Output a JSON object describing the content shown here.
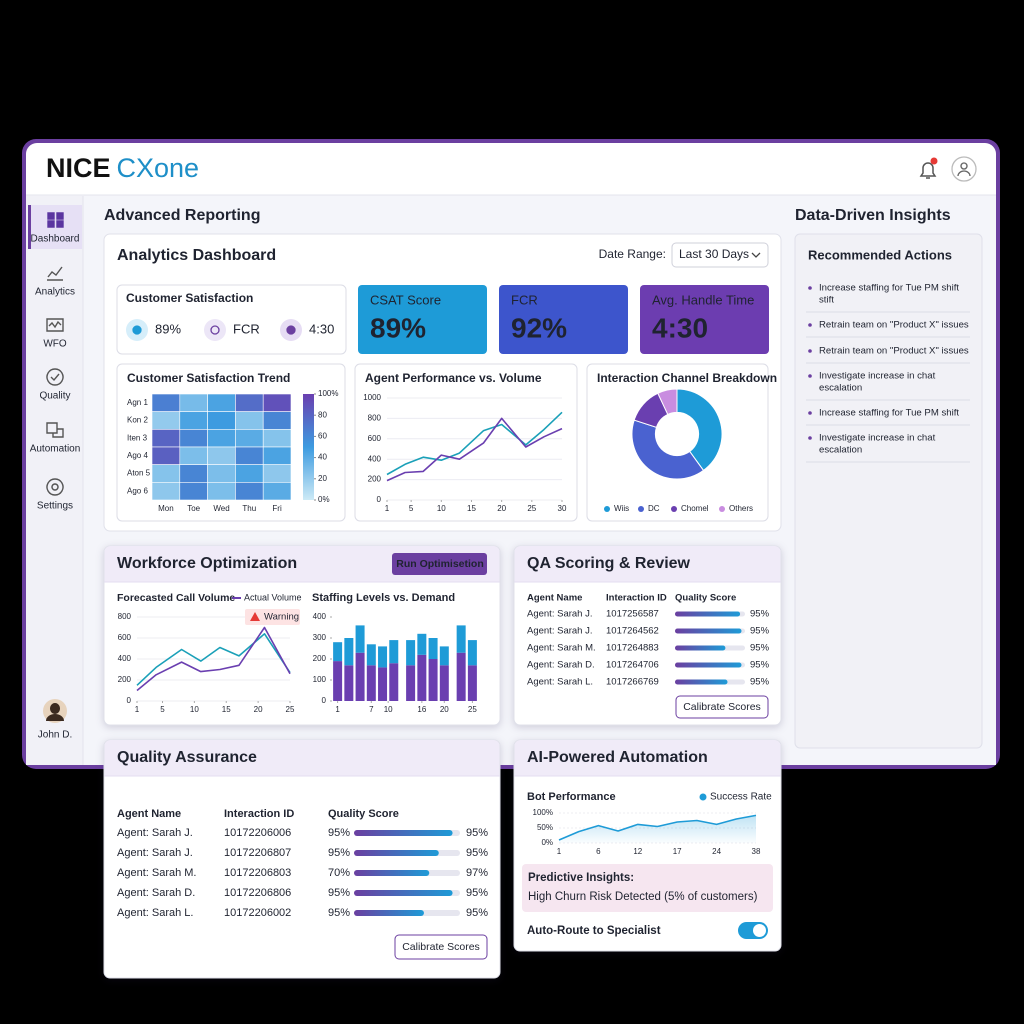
{
  "header": {
    "logo_bold": "NICE",
    "logo_light": "CXone"
  },
  "sidebar": {
    "items": [
      "Dashboard",
      "Analytics",
      "WFO",
      "Quality",
      "Automation",
      "Settings"
    ],
    "active": 0,
    "user": "John D."
  },
  "heading": "Advanced Reporting",
  "analytics": {
    "title": "Analytics Dashboard",
    "date_label": "Date Range:",
    "date_value": "Last 30 Days",
    "satisfaction": {
      "title": "Customer Satisfaction",
      "items": [
        "89%",
        "FCR",
        "4:30"
      ]
    },
    "kpis": [
      {
        "label": "CSAT Score",
        "value": "89%",
        "color": "#1e9bd7"
      },
      {
        "label": "FCR",
        "value": "92%",
        "color": "#3d55cc"
      },
      {
        "label": "Avg. Handle Time",
        "value": "4:30",
        "color": "#6c3db0"
      }
    ],
    "heatmap": {
      "type": "heatmap",
      "title": "Customer Satisfaction Trend",
      "rows": [
        "Agn 1",
        "Kon 2",
        "Iten 3",
        "Ago 4",
        "Aton 5",
        "Ago 6"
      ],
      "columns": [
        "Mon",
        "Toe",
        "Wed",
        "Thu",
        "Fri"
      ],
      "values": [
        [
          65,
          30,
          45,
          75,
          90
        ],
        [
          20,
          45,
          50,
          25,
          62
        ],
        [
          80,
          62,
          45,
          40,
          25
        ],
        [
          82,
          28,
          22,
          62,
          45
        ],
        [
          25,
          62,
          28,
          45,
          22
        ],
        [
          22,
          62,
          28,
          62,
          40
        ]
      ],
      "clim": [
        0,
        100
      ],
      "colorbar_ticks": [
        {
          "value": 100,
          "label": "100%"
        },
        80,
        60,
        40,
        20,
        {
          "value": 0,
          "label": "0%"
        }
      ]
    },
    "performance": {
      "type": "line",
      "title": "Agent Performance vs. Volume",
      "x": [
        1,
        4,
        7,
        10,
        13,
        17,
        20,
        24,
        27,
        30
      ],
      "series": [
        {
          "color": "#1aa0b8",
          "values": [
            250,
            350,
            420,
            390,
            460,
            680,
            740,
            540,
            690,
            860
          ]
        },
        {
          "color": "#6a3fb0",
          "values": [
            190,
            270,
            280,
            440,
            400,
            560,
            800,
            520,
            620,
            700
          ]
        }
      ],
      "xlim": [
        1,
        30
      ],
      "ylim": [
        0,
        1000
      ],
      "xticks": [
        1,
        5,
        10,
        15,
        20,
        25,
        30
      ],
      "yticks": [
        0,
        200,
        400,
        600,
        800,
        1000
      ],
      "grid": true
    },
    "channels": {
      "type": "pie",
      "title": "Interaction Channel Breakdown",
      "categories": [
        "Wiis",
        "DC",
        "Chomel",
        "Others"
      ],
      "values": [
        40,
        40,
        13,
        7
      ],
      "colors": [
        "#1e9bd7",
        "#4a62d0",
        "#6a3fb0",
        "#c98de0"
      ],
      "donut": true
    }
  },
  "insights": {
    "heading": "Data-Driven Insights",
    "title": "Recommended Actions",
    "items": [
      [
        "Increase staffing for Tue PM shift",
        "stift"
      ],
      [
        "Retrain team on \"Product X\" issues"
      ],
      [
        "Retrain team on \"Product X\" issues"
      ],
      [
        "Investigate increase in chat",
        "escalation"
      ],
      [
        "Increase staffing for Tue PM shift"
      ],
      [
        "Investigate increase in chat",
        "escalation"
      ]
    ]
  },
  "workforce": {
    "title": "Workforce Optimization",
    "button": "Run Optimisetion",
    "forecast": {
      "type": "line",
      "title": "Forecasted Call Volume",
      "warning": "Warning",
      "x": [
        1,
        4,
        8,
        11,
        14,
        17,
        21,
        25
      ],
      "series": [
        {
          "color": "#1aa0b8",
          "values": [
            150,
            320,
            490,
            380,
            510,
            430,
            640,
            270
          ]
        },
        {
          "name": "Actual Volume",
          "color": "#6a3fb0",
          "values": [
            100,
            250,
            370,
            280,
            300,
            340,
            700,
            260
          ]
        }
      ],
      "xlim": [
        1,
        25
      ],
      "ylim": [
        0,
        800
      ],
      "xticks": [
        1,
        5,
        10,
        15,
        20,
        25
      ],
      "yticks": [
        0,
        200,
        400,
        600,
        800
      ],
      "grid": true
    },
    "staffing": {
      "type": "bar",
      "stacked": true,
      "title": "Staffing Levels vs. Demand",
      "x": [
        1,
        3,
        5,
        7,
        9,
        11,
        14,
        16,
        18,
        20,
        23,
        25
      ],
      "series": [
        {
          "color": "#6a3fb0",
          "values": [
            190,
            170,
            230,
            170,
            160,
            180,
            170,
            220,
            200,
            170,
            230,
            170
          ]
        },
        {
          "color": "#1e9bd7",
          "values": [
            90,
            130,
            130,
            100,
            100,
            110,
            120,
            100,
            100,
            90,
            130,
            120
          ]
        }
      ],
      "xlim": [
        0,
        26
      ],
      "ylim": [
        0,
        400
      ],
      "xticks": [
        1,
        7,
        10,
        16,
        20,
        25
      ],
      "yticks": [
        0,
        100,
        200,
        300,
        400
      ]
    }
  },
  "qa_scoring": {
    "title": "QA Scoring & Review",
    "columns": [
      "Agent Name",
      "Interaction ID",
      "Quality Score"
    ],
    "rows": [
      [
        "Agent: Sarah J.",
        "1017256587",
        "95%"
      ],
      [
        "Agent: Sarah J.",
        "1017264562",
        "95%"
      ],
      [
        "Agent: Sarah M.",
        "1017264883",
        "95%"
      ],
      [
        "Agent: Sarah D.",
        "1017264706",
        "95%"
      ],
      [
        "Agent: Sarah L.",
        "1017266769",
        "95%"
      ]
    ],
    "bars": [
      93,
      95,
      72,
      95,
      75
    ],
    "button": "Calibrate Scores"
  },
  "quality_assurance": {
    "title": "Quality Assurance",
    "columns": [
      "Agent Name",
      "Interaction ID",
      "Quality Score"
    ],
    "rows": [
      [
        "Agent: Sarah J.",
        "10172206006",
        "95%",
        "95%"
      ],
      [
        "Agent: Sarah J.",
        "10172206807",
        "95%",
        "95%"
      ],
      [
        "Agent: Sarah M.",
        "10172206803",
        "70%",
        "97%"
      ],
      [
        "Agent: Sarah D.",
        "10172206806",
        "95%",
        "95%"
      ],
      [
        "Agent: Sarah L.",
        "10172206002",
        "95%",
        "95%"
      ]
    ],
    "bars": [
      93,
      80,
      71,
      93,
      66
    ],
    "button": "Calibrate Scores"
  },
  "automation": {
    "title": "AI-Powered Automation",
    "bot": {
      "type": "line",
      "title": "Bot Performance",
      "categories": [
        "1",
        null,
        "6",
        null,
        "12",
        null,
        "17",
        null,
        "24",
        null,
        "38"
      ],
      "series": [
        {
          "name": "Success Rate",
          "color": "#1e9bd7",
          "values": [
            10,
            38,
            58,
            40,
            62,
            55,
            70,
            75,
            62,
            80,
            92
          ]
        }
      ],
      "ylim": [
        0,
        100
      ],
      "yticks": [
        {
          "value": 0,
          "label": "0%"
        },
        {
          "value": 50,
          "label": "50%"
        },
        {
          "value": 100,
          "label": "100%"
        }
      ],
      "grid": true
    },
    "insight_title": "Predictive Insights:",
    "insight_text": "High Churn Risk Detected (5% of customers)",
    "toggle_label": "Auto-Route to Specialist",
    "toggle_on": true
  }
}
